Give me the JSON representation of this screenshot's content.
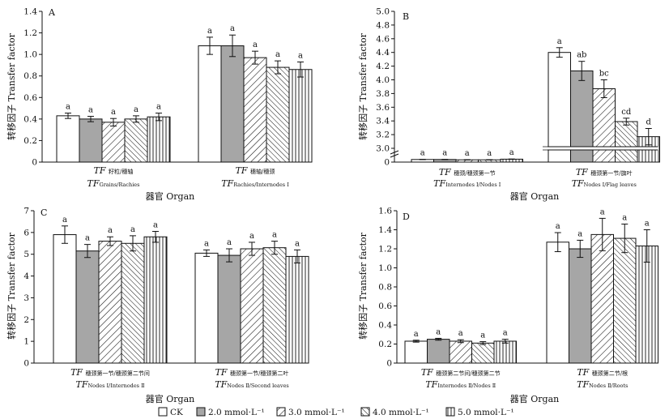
{
  "figure": {
    "legend": [
      {
        "label": "CK",
        "pattern": "white"
      },
      {
        "label": "2.0 mmol·L⁻¹",
        "pattern": "gray"
      },
      {
        "label": "3.0 mmol·L⁻¹",
        "pattern": "diag"
      },
      {
        "label": "4.0 mmol·L⁻¹",
        "pattern": "diag2"
      },
      {
        "label": "5.0 mmol·L⁻¹",
        "pattern": "vert"
      }
    ],
    "colors": {
      "gray_fill": "#a6a6a6",
      "line": "#111111"
    }
  },
  "chart_data": [
    {
      "type": "bar",
      "panel": "A",
      "ylabel": "转移因子 Transfer factor",
      "ylim": [
        0,
        1.4
      ],
      "yticks": [
        "0",
        "0.2",
        "0.4",
        "0.6",
        "0.8",
        "1.0",
        "1.2",
        "1.4"
      ],
      "groups": [
        {
          "label_main": "TF",
          "label_cn": "籽粒/穗轴",
          "label_sub_main": "TF",
          "label_sub": "Grains/Rachies",
          "values": [
            0.43,
            0.4,
            0.37,
            0.4,
            0.42
          ],
          "errors": [
            0.025,
            0.025,
            0.035,
            0.03,
            0.035
          ],
          "letters": [
            "a",
            "a",
            "a",
            "a",
            "a"
          ]
        },
        {
          "label_main": "TF",
          "label_cn": "穗轴/穗颈",
          "label_sub_main": "TF",
          "label_sub": "Rachies/Internodes Ⅰ",
          "values": [
            1.08,
            1.08,
            0.97,
            0.88,
            0.86
          ],
          "errors": [
            0.08,
            0.1,
            0.06,
            0.06,
            0.07
          ],
          "letters": [
            "a",
            "a",
            "a",
            "a",
            "a"
          ]
        }
      ],
      "organ_label": ""
    },
    {
      "type": "bar",
      "panel": "B",
      "ylabel": "转移因子 Transfer factor",
      "ylim": [
        0,
        5.0
      ],
      "axis_break": true,
      "yticks": [
        "0",
        "3.0",
        "3.2",
        "3.4",
        "3.6",
        "3.8",
        "4.0",
        "4.2",
        "4.4",
        "4.6",
        "4.8",
        "5.0"
      ],
      "groups": [
        {
          "label_main": "TF",
          "label_cn": "穗颈/穗颈第一节",
          "label_sub_main": "TF",
          "label_sub": "Internodes Ⅰ/Nodes Ⅰ",
          "values": [
            0.08,
            0.08,
            0.07,
            0.07,
            0.09
          ],
          "errors": [
            0.005,
            0.005,
            0.005,
            0.005,
            0.005
          ],
          "letters": [
            "a",
            "a",
            "a",
            "a",
            "a"
          ]
        },
        {
          "label_main": "TF",
          "label_cn": "穗颈第一节/旗叶",
          "label_sub_main": "TF",
          "label_sub": "Nodes Ⅰ/Flag leaves",
          "values": [
            4.4,
            4.13,
            3.87,
            3.39,
            3.17
          ],
          "errors": [
            0.07,
            0.14,
            0.13,
            0.05,
            0.12
          ],
          "letters": [
            "a",
            "ab",
            "bc",
            "cd",
            "d"
          ]
        }
      ],
      "organ_label": "器官 Organ"
    },
    {
      "type": "bar",
      "panel": "C",
      "ylabel": "转移因子 Transfer factor",
      "ylim": [
        0,
        7
      ],
      "yticks": [
        "0",
        "1",
        "2",
        "3",
        "4",
        "5",
        "6",
        "7"
      ],
      "groups": [
        {
          "label_main": "TF",
          "label_cn": "穗颈第一节/穗颈第二节间",
          "label_sub_main": "TF",
          "label_sub": "Nodes Ⅰ/Internodes Ⅱ",
          "values": [
            5.9,
            5.15,
            5.6,
            5.5,
            5.8
          ],
          "errors": [
            0.4,
            0.3,
            0.2,
            0.35,
            0.25
          ],
          "letters": [
            "a",
            "a",
            "a",
            "a",
            "a"
          ]
        },
        {
          "label_main": "TF",
          "label_cn": "穗颈第一节/穗颈第二叶",
          "label_sub_main": "TF",
          "label_sub": "Nodes Ⅱ/Second leaves",
          "values": [
            5.05,
            4.95,
            5.25,
            5.3,
            4.9
          ],
          "errors": [
            0.15,
            0.3,
            0.3,
            0.3,
            0.3
          ],
          "letters": [
            "a",
            "a",
            "a",
            "a",
            "a"
          ]
        }
      ],
      "organ_label": "器官 Organ"
    },
    {
      "type": "bar",
      "panel": "D",
      "ylabel": "转移因子 Transfer factor",
      "ylim": [
        0,
        1.6
      ],
      "yticks": [
        "0",
        "0.2",
        "0.4",
        "0.6",
        "0.8",
        "1.0",
        "1.2",
        "1.4",
        "1.6"
      ],
      "groups": [
        {
          "label_main": "TF",
          "label_cn": "穗颈第二节间/穗颈第二节",
          "label_sub_main": "TF",
          "label_sub": "Internodes Ⅱ/Nodes Ⅱ",
          "values": [
            0.23,
            0.25,
            0.23,
            0.21,
            0.23
          ],
          "errors": [
            0.01,
            0.01,
            0.015,
            0.015,
            0.02
          ],
          "letters": [
            "a",
            "a",
            "a",
            "a",
            "a"
          ]
        },
        {
          "label_main": "TF",
          "label_cn": "穗颈第二节/根",
          "label_sub_main": "TF",
          "label_sub": "Nodes Ⅱ/Roots",
          "values": [
            1.27,
            1.2,
            1.35,
            1.31,
            1.23
          ],
          "errors": [
            0.1,
            0.09,
            0.17,
            0.15,
            0.17
          ],
          "letters": [
            "a",
            "a",
            "a",
            "a",
            "a"
          ]
        }
      ],
      "organ_label": "器官 Organ"
    }
  ]
}
